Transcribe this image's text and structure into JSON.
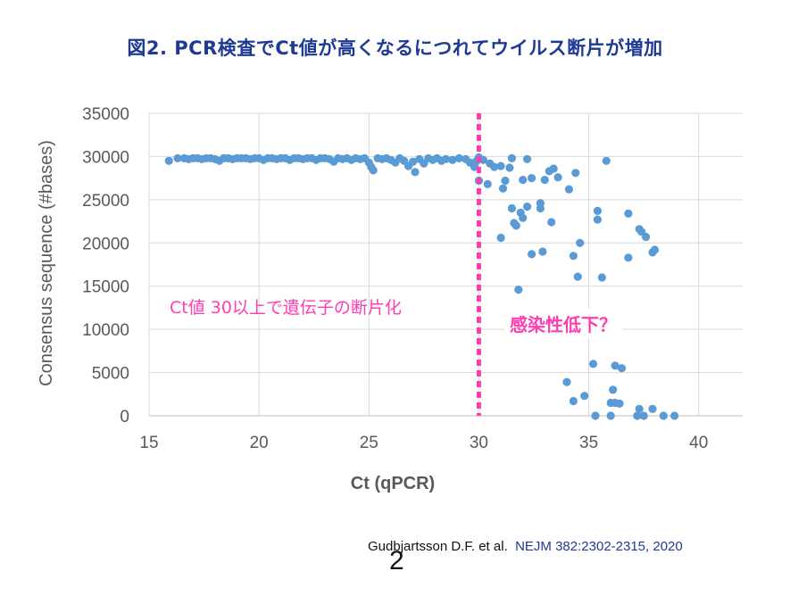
{
  "title": "図2. PCR検査でCt値が高くなるにつれてウイルス断片が増加",
  "annotations": {
    "left": "Ct値 30以上で遺伝子の断片化",
    "right": "感染性低下？"
  },
  "citation": {
    "authors": "Gudbjartsson D.F. et al.",
    "journal": "NEJM 382:2302-2315, 2020"
  },
  "slide_number": "2",
  "colors": {
    "points": "#5b9bd5",
    "threshold": "#ff3db0",
    "title": "#1f3a93",
    "axis_text": "#595959",
    "grid": "#d9d9d9"
  },
  "chart_data": {
    "type": "scatter",
    "title": "",
    "xlabel": "Ct (qPCR)",
    "ylabel": "Consensus sequence (#bases)",
    "xlim": [
      15,
      42
    ],
    "ylim": [
      0,
      35000
    ],
    "xticks": [
      15,
      20,
      25,
      30,
      35,
      40
    ],
    "yticks": [
      0,
      5000,
      10000,
      15000,
      20000,
      25000,
      30000,
      35000
    ],
    "xtick_labels": [
      "15",
      "20",
      "25",
      "30",
      "35",
      "40"
    ],
    "ytick_labels": [
      "0",
      "5000",
      "10000",
      "15000",
      "20000",
      "25000",
      "30000",
      "35000"
    ],
    "grid": true,
    "threshold_x": 30,
    "points": [
      [
        15.9,
        29500
      ],
      [
        16.3,
        29800
      ],
      [
        16.6,
        29800
      ],
      [
        16.8,
        29700
      ],
      [
        17.0,
        29800
      ],
      [
        17.2,
        29800
      ],
      [
        17.4,
        29700
      ],
      [
        17.6,
        29800
      ],
      [
        17.8,
        29800
      ],
      [
        18.0,
        29700
      ],
      [
        18.2,
        29500
      ],
      [
        18.4,
        29800
      ],
      [
        18.6,
        29800
      ],
      [
        18.8,
        29700
      ],
      [
        19.0,
        29800
      ],
      [
        19.2,
        29800
      ],
      [
        19.4,
        29800
      ],
      [
        19.6,
        29700
      ],
      [
        19.8,
        29800
      ],
      [
        20.0,
        29800
      ],
      [
        20.2,
        29600
      ],
      [
        20.4,
        29800
      ],
      [
        20.6,
        29800
      ],
      [
        20.8,
        29700
      ],
      [
        21.0,
        29800
      ],
      [
        21.2,
        29800
      ],
      [
        21.4,
        29600
      ],
      [
        21.6,
        29800
      ],
      [
        21.8,
        29800
      ],
      [
        22.0,
        29700
      ],
      [
        22.2,
        29800
      ],
      [
        22.4,
        29800
      ],
      [
        22.6,
        29600
      ],
      [
        22.8,
        29800
      ],
      [
        23.0,
        29800
      ],
      [
        23.2,
        29700
      ],
      [
        23.4,
        29400
      ],
      [
        23.6,
        29800
      ],
      [
        23.8,
        29700
      ],
      [
        24.0,
        29800
      ],
      [
        24.2,
        29600
      ],
      [
        24.4,
        29800
      ],
      [
        24.6,
        29700
      ],
      [
        24.8,
        29800
      ],
      [
        25.0,
        29300
      ],
      [
        25.1,
        28800
      ],
      [
        25.2,
        28400
      ],
      [
        25.4,
        29800
      ],
      [
        25.6,
        29700
      ],
      [
        25.8,
        29800
      ],
      [
        26.0,
        29600
      ],
      [
        26.2,
        29300
      ],
      [
        26.4,
        29800
      ],
      [
        26.6,
        29500
      ],
      [
        26.8,
        28900
      ],
      [
        27.0,
        29400
      ],
      [
        27.1,
        28200
      ],
      [
        27.3,
        29700
      ],
      [
        27.5,
        29200
      ],
      [
        27.7,
        29800
      ],
      [
        27.9,
        29600
      ],
      [
        28.1,
        29800
      ],
      [
        28.3,
        29500
      ],
      [
        28.5,
        29700
      ],
      [
        28.8,
        29600
      ],
      [
        29.1,
        29800
      ],
      [
        29.4,
        29700
      ],
      [
        29.6,
        29300
      ],
      [
        29.8,
        28800
      ],
      [
        29.9,
        29500
      ],
      [
        30.0,
        27200
      ],
      [
        30.0,
        29900
      ],
      [
        30.2,
        29600
      ],
      [
        30.4,
        26800
      ],
      [
        30.5,
        29200
      ],
      [
        30.7,
        28800
      ],
      [
        31.0,
        28900
      ],
      [
        31.1,
        26300
      ],
      [
        31.2,
        27200
      ],
      [
        31.4,
        28700
      ],
      [
        31.5,
        29800
      ],
      [
        31.0,
        20600
      ],
      [
        31.5,
        24000
      ],
      [
        31.6,
        22300
      ],
      [
        31.7,
        22000
      ],
      [
        31.8,
        14600
      ],
      [
        31.9,
        23500
      ],
      [
        32.0,
        27300
      ],
      [
        32.0,
        22900
      ],
      [
        32.2,
        24200
      ],
      [
        32.2,
        29700
      ],
      [
        32.4,
        27500
      ],
      [
        32.4,
        18700
      ],
      [
        32.8,
        24000
      ],
      [
        32.8,
        24600
      ],
      [
        32.9,
        19000
      ],
      [
        33.0,
        27300
      ],
      [
        33.2,
        28300
      ],
      [
        33.3,
        22400
      ],
      [
        33.4,
        28600
      ],
      [
        33.6,
        27600
      ],
      [
        34.1,
        26200
      ],
      [
        34.4,
        28100
      ],
      [
        34.3,
        18500
      ],
      [
        34.5,
        16100
      ],
      [
        34.6,
        20000
      ],
      [
        35.4,
        23700
      ],
      [
        35.4,
        22700
      ],
      [
        35.6,
        16000
      ],
      [
        35.8,
        29500
      ],
      [
        36.8,
        23400
      ],
      [
        36.8,
        18300
      ],
      [
        37.3,
        21600
      ],
      [
        37.4,
        21300
      ],
      [
        37.6,
        20700
      ],
      [
        37.9,
        18900
      ],
      [
        38.0,
        19200
      ],
      [
        34.0,
        3900
      ],
      [
        34.3,
        1700
      ],
      [
        34.8,
        2300
      ],
      [
        35.2,
        6000
      ],
      [
        35.3,
        0
      ],
      [
        36.0,
        0
      ],
      [
        36.0,
        1500
      ],
      [
        36.1,
        3000
      ],
      [
        36.2,
        5800
      ],
      [
        36.2,
        1500
      ],
      [
        36.4,
        1400
      ],
      [
        36.5,
        5500
      ],
      [
        37.2,
        0
      ],
      [
        37.3,
        800
      ],
      [
        37.5,
        0
      ],
      [
        37.9,
        800
      ],
      [
        38.4,
        0
      ],
      [
        38.9,
        0
      ]
    ]
  }
}
